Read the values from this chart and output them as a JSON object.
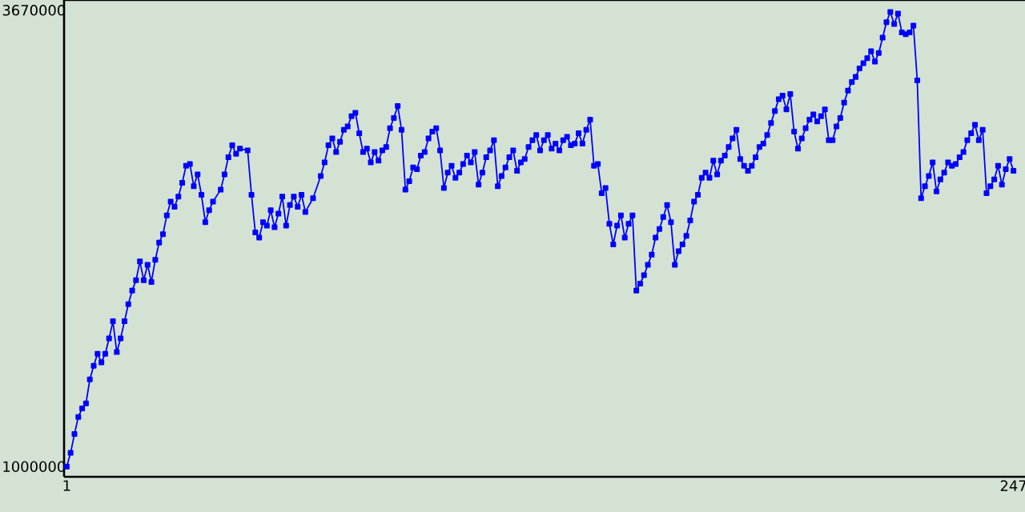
{
  "chart_data": {
    "type": "line",
    "marker": "square",
    "line_style": "solid",
    "xlim": [
      0.3,
      250
    ],
    "ylim": [
      940000,
      3730000
    ],
    "xticks": [
      1,
      247
    ],
    "yticks": [
      1000000,
      3670000
    ],
    "x": [
      1,
      2,
      3,
      4,
      5,
      6,
      7,
      8,
      9,
      10,
      11,
      12,
      13,
      14,
      15,
      16,
      17,
      18,
      19,
      20,
      21,
      22,
      23,
      24,
      25,
      26,
      27,
      28,
      29,
      30,
      31,
      32,
      33,
      34,
      35,
      36,
      37,
      38,
      39,
      41,
      42,
      43,
      44,
      45,
      46,
      48,
      49,
      50,
      51,
      52,
      53,
      54,
      55,
      56,
      57,
      58,
      59,
      60,
      61,
      62,
      63,
      65,
      67,
      68,
      69,
      70,
      71,
      72,
      73,
      74,
      75,
      76,
      77,
      78,
      79,
      80,
      81,
      82,
      83,
      84,
      85,
      86,
      87,
      88,
      89,
      90,
      91,
      92,
      93,
      94,
      95,
      96,
      97,
      98,
      99,
      100,
      101,
      102,
      103,
      104,
      105,
      106,
      107,
      108,
      109,
      110,
      111,
      112,
      113,
      114,
      115,
      116,
      117,
      118,
      119,
      120,
      121,
      122,
      123,
      124,
      125,
      126,
      127,
      128,
      129,
      130,
      131,
      132,
      133,
      134,
      135,
      136,
      137,
      138,
      139,
      140,
      141,
      142,
      143,
      144,
      145,
      146,
      147,
      148,
      149,
      150,
      151,
      152,
      153,
      154,
      155,
      156,
      157,
      158,
      159,
      160,
      161,
      162,
      163,
      164,
      165,
      166,
      167,
      168,
      169,
      170,
      171,
      172,
      173,
      174,
      175,
      176,
      177,
      178,
      179,
      180,
      181,
      182,
      183,
      184,
      185,
      186,
      187,
      188,
      189,
      190,
      191,
      192,
      193,
      194,
      195,
      196,
      197,
      198,
      199,
      200,
      201,
      202,
      203,
      204,
      205,
      206,
      207,
      208,
      209,
      210,
      211,
      212,
      213,
      214,
      215,
      216,
      217,
      218,
      219,
      220,
      221,
      222,
      223,
      224,
      225,
      226,
      227,
      228,
      229,
      230,
      231,
      232,
      233,
      234,
      235,
      236,
      237,
      238,
      239,
      240,
      241,
      242,
      243,
      244,
      245,
      246,
      247
    ],
    "series": [
      {
        "color": "#0000ff",
        "values": [
          1000000,
          1080000,
          1190000,
          1290000,
          1340000,
          1370000,
          1510000,
          1590000,
          1660000,
          1610000,
          1660000,
          1750000,
          1850000,
          1670000,
          1750000,
          1850000,
          1950000,
          2030000,
          2090000,
          2200000,
          2090000,
          2180000,
          2080000,
          2210000,
          2310000,
          2360000,
          2470000,
          2550000,
          2520000,
          2580000,
          2660000,
          2760000,
          2770000,
          2640000,
          2710000,
          2590000,
          2430000,
          2500000,
          2550000,
          2620000,
          2710000,
          2810000,
          2880000,
          2830000,
          2860000,
          2850000,
          2590000,
          2370000,
          2340000,
          2430000,
          2410000,
          2500000,
          2400000,
          2480000,
          2580000,
          2410000,
          2530000,
          2580000,
          2520000,
          2590000,
          2490000,
          2570000,
          2700000,
          2780000,
          2880000,
          2920000,
          2840000,
          2900000,
          2970000,
          2990000,
          3050000,
          3070000,
          2950000,
          2840000,
          2860000,
          2780000,
          2840000,
          2790000,
          2850000,
          2870000,
          2980000,
          3040000,
          3110000,
          2970000,
          2620000,
          2670000,
          2750000,
          2740000,
          2820000,
          2840000,
          2920000,
          2960000,
          2980000,
          2850000,
          2630000,
          2720000,
          2760000,
          2690000,
          2720000,
          2770000,
          2820000,
          2780000,
          2840000,
          2650000,
          2720000,
          2810000,
          2850000,
          2910000,
          2640000,
          2700000,
          2750000,
          2810000,
          2850000,
          2730000,
          2780000,
          2800000,
          2870000,
          2910000,
          2940000,
          2850000,
          2910000,
          2940000,
          2860000,
          2890000,
          2850000,
          2910000,
          2930000,
          2880000,
          2890000,
          2950000,
          2890000,
          2970000,
          3030000,
          2760000,
          2770000,
          2600000,
          2630000,
          2420000,
          2300000,
          2410000,
          2470000,
          2340000,
          2420000,
          2470000,
          2030000,
          2070000,
          2120000,
          2180000,
          2240000,
          2340000,
          2390000,
          2460000,
          2530000,
          2430000,
          2180000,
          2260000,
          2300000,
          2350000,
          2440000,
          2550000,
          2590000,
          2690000,
          2720000,
          2690000,
          2790000,
          2710000,
          2790000,
          2820000,
          2870000,
          2920000,
          2970000,
          2800000,
          2760000,
          2730000,
          2760000,
          2810000,
          2870000,
          2890000,
          2940000,
          3010000,
          3080000,
          3150000,
          3170000,
          3090000,
          3180000,
          2960000,
          2860000,
          2920000,
          2980000,
          3030000,
          3060000,
          3020000,
          3050000,
          3090000,
          2910000,
          2910000,
          2990000,
          3040000,
          3130000,
          3200000,
          3250000,
          3280000,
          3330000,
          3360000,
          3390000,
          3430000,
          3370000,
          3420000,
          3510000,
          3600000,
          3660000,
          3590000,
          3650000,
          3540000,
          3530000,
          3540000,
          3580000,
          3260000,
          2570000,
          2640000,
          2700000,
          2780000,
          2610000,
          2680000,
          2720000,
          2780000,
          2760000,
          2770000,
          2810000,
          2840000,
          2910000,
          2950000,
          3000000,
          2910000,
          2970000,
          2600000,
          2640000,
          2680000,
          2760000,
          2650000,
          2740000,
          2800000,
          2730000
        ]
      }
    ]
  }
}
